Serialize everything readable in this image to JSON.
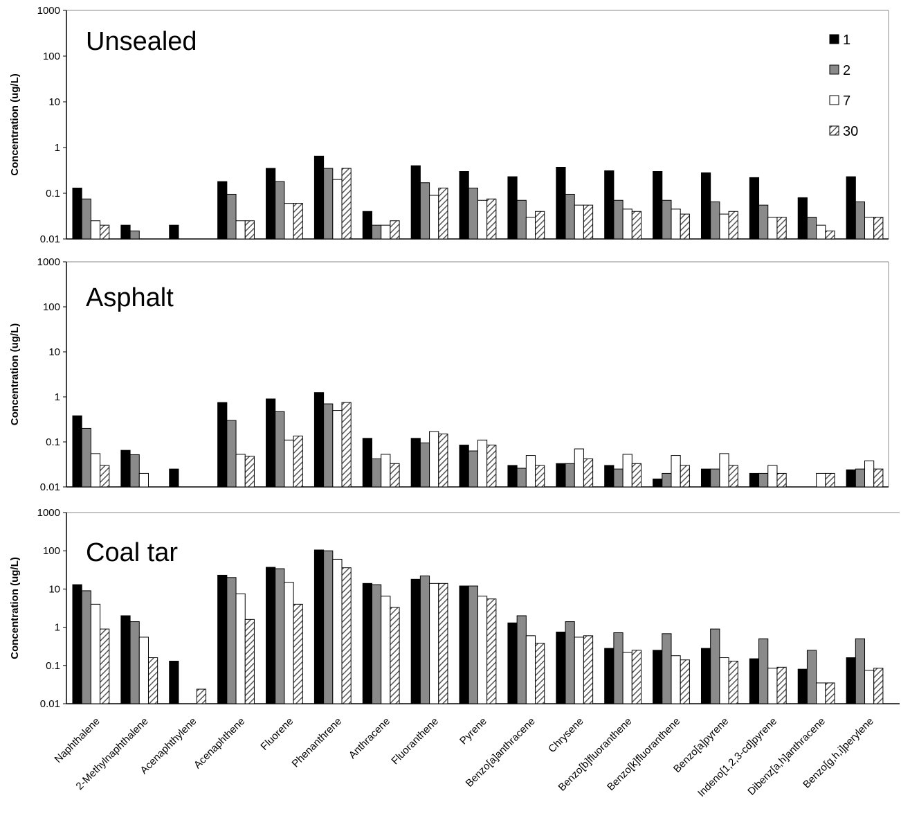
{
  "chart_data": {
    "type": "bar",
    "yscale": "log",
    "ylim": [
      0.01,
      1000
    ],
    "yticks": [
      "0.01",
      "0.1",
      "1",
      "10",
      "100",
      "1000"
    ],
    "ylabel": "Concentration (ug/L)",
    "categories": [
      "Naphthalene",
      "2-Methylnaphthalene",
      "Acenaphthylene",
      "Acenaphthene",
      "Fluorene",
      "Phenanthrene",
      "Anthracene",
      "Fluoranthene",
      "Pyrene",
      "Benzo[a]anthracene",
      "Chrysene",
      "Benzo[b]fluoranthene",
      "Benzo[k]fluoranthene",
      "Benzo[a]pyrene",
      "Indeno[1,2,3-cd]pyrene",
      "Dibenz[a,h]anthracene",
      "Benzo[g,h,i]perylene"
    ],
    "legend": [
      "1",
      "2",
      "7",
      "30"
    ],
    "legend_placement": "top-right",
    "colors": {
      "1": "#000000",
      "2": "#8a8a8a",
      "7": "#ffffff",
      "30": "hatched"
    },
    "panels": [
      {
        "title": "Unsealed",
        "series": [
          {
            "name": "1",
            "values": [
              0.13,
              0.02,
              0.02,
              0.18,
              0.35,
              0.65,
              0.04,
              0.4,
              0.3,
              0.23,
              0.37,
              0.31,
              0.3,
              0.28,
              0.22,
              0.08,
              0.23
            ]
          },
          {
            "name": "2",
            "values": [
              0.075,
              0.015,
              null,
              0.095,
              0.18,
              0.35,
              0.02,
              0.17,
              0.13,
              0.07,
              0.095,
              0.07,
              0.07,
              0.065,
              0.055,
              0.03,
              0.065
            ]
          },
          {
            "name": "7",
            "values": [
              0.025,
              null,
              null,
              0.025,
              0.06,
              0.2,
              0.02,
              0.09,
              0.07,
              0.03,
              0.055,
              0.045,
              0.045,
              0.035,
              0.03,
              0.02,
              0.03
            ]
          },
          {
            "name": "30",
            "values": [
              0.02,
              null,
              null,
              0.025,
              0.06,
              0.35,
              0.025,
              0.13,
              0.075,
              0.04,
              0.055,
              0.04,
              0.035,
              0.04,
              0.03,
              0.015,
              0.03
            ]
          }
        ]
      },
      {
        "title": "Asphalt",
        "series": [
          {
            "name": "1",
            "values": [
              0.38,
              0.065,
              0.025,
              0.75,
              0.9,
              1.25,
              0.12,
              0.12,
              0.085,
              0.03,
              0.033,
              0.03,
              0.015,
              0.025,
              0.02,
              null,
              0.024
            ]
          },
          {
            "name": "2",
            "values": [
              0.2,
              0.052,
              null,
              0.3,
              0.47,
              0.7,
              0.042,
              0.095,
              0.063,
              0.026,
              0.033,
              0.025,
              0.02,
              0.025,
              0.02,
              null,
              0.025
            ]
          },
          {
            "name": "7",
            "values": [
              0.055,
              0.02,
              null,
              0.053,
              0.11,
              0.5,
              0.053,
              0.17,
              0.11,
              0.05,
              0.07,
              0.053,
              0.05,
              0.055,
              0.03,
              0.02,
              0.038
            ]
          },
          {
            "name": "30",
            "values": [
              0.03,
              null,
              null,
              0.048,
              0.135,
              0.75,
              0.033,
              0.15,
              0.085,
              0.03,
              0.042,
              0.033,
              0.03,
              0.03,
              0.02,
              0.02,
              0.025
            ]
          }
        ]
      },
      {
        "title": "Coal tar",
        "series": [
          {
            "name": "1",
            "values": [
              13,
              2,
              0.13,
              23,
              37,
              105,
              14,
              18,
              12,
              1.3,
              0.75,
              0.28,
              0.25,
              0.28,
              0.15,
              0.08,
              0.16
            ]
          },
          {
            "name": "2",
            "values": [
              9,
              1.4,
              null,
              20,
              34,
              100,
              13,
              22,
              12,
              2,
              1.4,
              0.72,
              0.68,
              0.9,
              0.5,
              0.25,
              0.5
            ]
          },
          {
            "name": "7",
            "values": [
              4,
              0.55,
              null,
              7.5,
              15,
              60,
              6.5,
              14,
              6.5,
              0.6,
              0.55,
              0.22,
              0.18,
              0.16,
              0.085,
              0.035,
              0.075
            ]
          },
          {
            "name": "30",
            "values": [
              0.9,
              0.16,
              0.024,
              1.6,
              4,
              36,
              3.3,
              14,
              5.5,
              0.38,
              0.6,
              0.25,
              0.14,
              0.13,
              0.09,
              0.035,
              0.085
            ]
          }
        ]
      }
    ]
  }
}
